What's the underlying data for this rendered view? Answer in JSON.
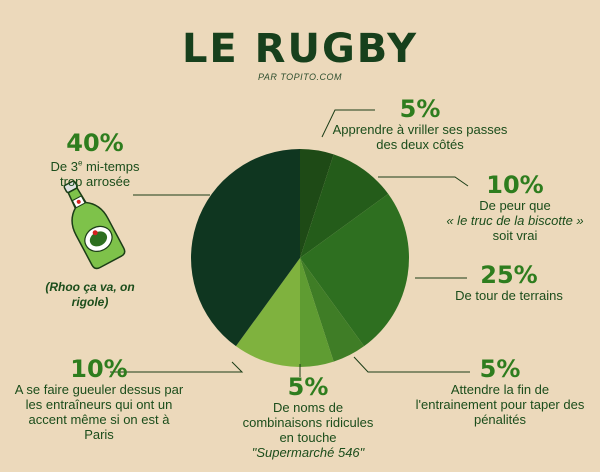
{
  "title": "LE RUGBY",
  "subtitle": "PAR TOPITO.COM",
  "aside_note": "(Rhoo ça va, on rigole)",
  "aside_icon": "beer-bottle-icon",
  "colors": {
    "background": "#ecd9bb",
    "pct_text": "#2e7d1e",
    "desc_text": "#1b4d1b"
  },
  "chart_data": {
    "type": "pie",
    "title": "LE RUGBY",
    "start_angle_deg": 0,
    "direction": "clockwise",
    "slices": [
      {
        "percent": 5,
        "value_label": "5%",
        "label": "Apprendre à vriller ses passes des deux côtés",
        "color": "#1e4a16"
      },
      {
        "percent": 10,
        "value_label": "10%",
        "label": "De peur que « le truc de la biscotte » soit vrai",
        "color": "#245c1a"
      },
      {
        "percent": 25,
        "value_label": "25%",
        "label": "De tour de terrains",
        "color": "#2e6f20"
      },
      {
        "percent": 5,
        "value_label": "5%",
        "label": "Attendre la fin de l'entrainement pour taper des pénalités",
        "color": "#3f7d26"
      },
      {
        "percent": 5,
        "value_label": "5%",
        "label": "De noms de combinaisons ridicules en touche \"Supermarché 546\"",
        "color": "#5f9c32"
      },
      {
        "percent": 10,
        "value_label": "10%",
        "label": "A se faire gueuler dessus par les entraîneurs qui ont un accent même si on est à Paris",
        "color": "#7fb23e"
      },
      {
        "percent": 40,
        "value_label": "40%",
        "label": "De 3e mi-temps trop arrosée",
        "color": "#0f3620"
      }
    ]
  }
}
